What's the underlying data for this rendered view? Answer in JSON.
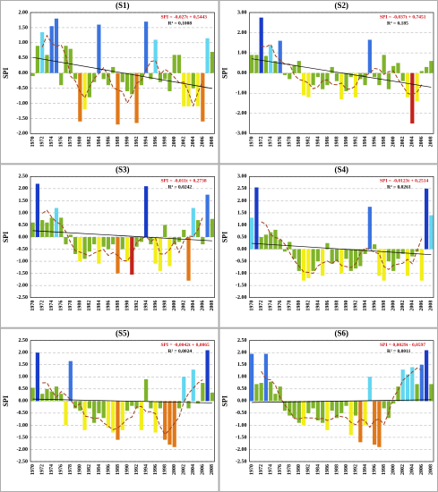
{
  "chart_data": [
    {
      "type": "bar",
      "title": "(S1)",
      "ylabel": "SPI",
      "categories": [
        "1970",
        null,
        "1972",
        null,
        "1974",
        null,
        "1976",
        null,
        "1978",
        null,
        "1980",
        null,
        "1982",
        null,
        "1984",
        null,
        "1986",
        null,
        "1988",
        null,
        "1990",
        null,
        "1992",
        null,
        "1994",
        null,
        "1996",
        null,
        "1998",
        null,
        "2000",
        null,
        "2002",
        null,
        "2004",
        null,
        "2006",
        null,
        "2008"
      ],
      "values": [
        -0.1,
        0.9,
        1.35,
        0.6,
        1.55,
        1.8,
        -0.4,
        0.9,
        0.8,
        -0.2,
        -1.6,
        -1.2,
        -0.8,
        -0.3,
        1.6,
        -0.2,
        -0.4,
        0.2,
        -1.7,
        -0.3,
        -0.6,
        -0.7,
        -1.65,
        -0.4,
        1.7,
        -0.2,
        1.1,
        -0.3,
        -0.2,
        -0.6,
        0.6,
        0.6,
        -1.1,
        -1.1,
        -0.5,
        -1.1,
        -1.6,
        1.15,
        0.7
      ],
      "colors": [
        "#7fb32a",
        "#7fb32a",
        "#62d6f0",
        "#7fb32a",
        "#3b73e0",
        "#3b73e0",
        "#7fb32a",
        "#7fb32a",
        "#7fb32a",
        "#7fb32a",
        "#e07818",
        "#f2ee1a",
        "#7fb32a",
        "#7fb32a",
        "#3b73e0",
        "#7fb32a",
        "#7fb32a",
        "#7fb32a",
        "#e07818",
        "#7fb32a",
        "#7fb32a",
        "#7fb32a",
        "#e07818",
        "#7fb32a",
        "#3b73e0",
        "#7fb32a",
        "#62d6f0",
        "#7fb32a",
        "#7fb32a",
        "#7fb32a",
        "#7fb32a",
        "#7fb32a",
        "#f2ee1a",
        "#f2ee1a",
        "#7fb32a",
        "#f2ee1a",
        "#e07818",
        "#62d6f0",
        "#7fb32a"
      ],
      "ylim": [
        -2,
        2
      ],
      "yticks": [
        {
          "value": -2,
          "label": "-2.00"
        },
        {
          "value": -1.5,
          "label": "-1.50"
        },
        {
          "value": -1,
          "label": "-1.00"
        },
        {
          "value": -0.5,
          "label": "-0.50"
        },
        {
          "value": 0,
          "label": "0.00"
        },
        {
          "value": 0.5,
          "label": "0.50"
        },
        {
          "value": 1,
          "label": "1.00"
        },
        {
          "value": 1.5,
          "label": "1.50"
        },
        {
          "value": 2,
          "label": "2.00"
        }
      ],
      "grid": true,
      "trend": {
        "label": "SPI = -0,027t + 0,5443",
        "r2_label": "R² = 0,1008",
        "slope": -0.027,
        "intercept": 0.5443
      }
    },
    {
      "type": "bar",
      "title": "(S2)",
      "ylabel": "SPI",
      "categories": [
        "1970",
        null,
        "1972",
        null,
        "1974",
        null,
        "1976",
        null,
        "1978",
        null,
        "1980",
        null,
        "1982",
        null,
        "1984",
        null,
        "1986",
        null,
        "1988",
        null,
        "1990",
        null,
        "1992",
        null,
        "1994",
        null,
        "1996",
        null,
        "1998",
        null,
        "2000",
        null,
        "2002",
        null,
        "2004",
        null,
        "2006",
        null,
        "2008"
      ],
      "values": [
        0.9,
        0.9,
        2.75,
        0.85,
        1.35,
        0.6,
        1.6,
        -0.1,
        -0.3,
        0.4,
        0.6,
        -1.1,
        -1.2,
        -0.6,
        -0.2,
        -0.8,
        -0.6,
        0.3,
        -0.4,
        -1.3,
        -0.9,
        -0.2,
        -1.2,
        -0.3,
        -0.6,
        1.65,
        -0.2,
        -0.6,
        0.9,
        -0.8,
        0.35,
        0.5,
        -0.4,
        -1.2,
        -2.5,
        -1.4,
        0.1,
        0.3,
        0.6
      ],
      "colors": [
        "#7fb32a",
        "#7fb32a",
        "#1a3cc8",
        "#7fb32a",
        "#62d6f0",
        "#7fb32a",
        "#3b73e0",
        "#7fb32a",
        "#7fb32a",
        "#7fb32a",
        "#7fb32a",
        "#f2ee1a",
        "#f2ee1a",
        "#7fb32a",
        "#7fb32a",
        "#7fb32a",
        "#7fb32a",
        "#7fb32a",
        "#7fb32a",
        "#f2ee1a",
        "#7fb32a",
        "#7fb32a",
        "#f2ee1a",
        "#7fb32a",
        "#7fb32a",
        "#3b73e0",
        "#7fb32a",
        "#7fb32a",
        "#7fb32a",
        "#7fb32a",
        "#7fb32a",
        "#7fb32a",
        "#7fb32a",
        "#f2ee1a",
        "#c4221c",
        "#f2ee1a",
        "#7fb32a",
        "#7fb32a",
        "#7fb32a"
      ],
      "ylim": [
        -3,
        3
      ],
      "yticks": [
        {
          "value": -3,
          "label": "-3.00"
        },
        {
          "value": -2,
          "label": "-2.00"
        },
        {
          "value": -1,
          "label": "-1.00"
        },
        {
          "value": 0,
          "label": "0.00"
        },
        {
          "value": 1,
          "label": "1.00"
        },
        {
          "value": 2,
          "label": "2.00"
        },
        {
          "value": 3,
          "label": "3.00"
        }
      ],
      "grid": true,
      "trend": {
        "label": "SPI = -0,037t + 0,7451",
        "r2_label": "R² = 0,185",
        "slope": -0.037,
        "intercept": 0.7451
      }
    },
    {
      "type": "bar",
      "title": "(S3)",
      "ylabel": "SPI",
      "categories": [
        "1970",
        null,
        "1972",
        null,
        "1974",
        null,
        "1976",
        null,
        "1978",
        null,
        "1980",
        null,
        "1982",
        null,
        "1984",
        null,
        "1986",
        null,
        "1988",
        null,
        "1990",
        null,
        "1992",
        null,
        "1994",
        null,
        "1996",
        null,
        "1998",
        null,
        "2000",
        null,
        "2002",
        null,
        "2004",
        null,
        "2006",
        null,
        "2008"
      ],
      "values": [
        0.6,
        2.2,
        0.7,
        0.6,
        0.8,
        1.2,
        0.8,
        -0.3,
        0.1,
        -0.7,
        -1.0,
        -0.9,
        -0.6,
        -0.3,
        -1.1,
        -0.4,
        -0.5,
        -0.3,
        -1.5,
        -0.5,
        -1.0,
        -1.55,
        -0.4,
        -0.2,
        2.1,
        -0.3,
        -1.1,
        -1.4,
        0.5,
        -1.2,
        -0.3,
        -0.2,
        0.3,
        -1.8,
        1.2,
        0.7,
        -0.3,
        1.75,
        0.75
      ],
      "colors": [
        "#7fb32a",
        "#1a3cc8",
        "#7fb32a",
        "#7fb32a",
        "#7fb32a",
        "#62d6f0",
        "#7fb32a",
        "#7fb32a",
        "#7fb32a",
        "#7fb32a",
        "#f2ee1a",
        "#7fb32a",
        "#7fb32a",
        "#7fb32a",
        "#f2ee1a",
        "#7fb32a",
        "#7fb32a",
        "#7fb32a",
        "#e07818",
        "#7fb32a",
        "#f2ee1a",
        "#c4221c",
        "#7fb32a",
        "#7fb32a",
        "#1a3cc8",
        "#7fb32a",
        "#f2ee1a",
        "#f2ee1a",
        "#7fb32a",
        "#f2ee1a",
        "#7fb32a",
        "#7fb32a",
        "#7fb32a",
        "#e07818",
        "#62d6f0",
        "#7fb32a",
        "#7fb32a",
        "#3b73e0",
        "#7fb32a"
      ],
      "ylim": [
        -2.5,
        2.5
      ],
      "yticks": [
        {
          "value": -2.5,
          "label": "-2.50"
        },
        {
          "value": -2,
          "label": "-2.00"
        },
        {
          "value": -1.5,
          "label": "-1.50"
        },
        {
          "value": -1,
          "label": "-1.00"
        },
        {
          "value": -0.5,
          "label": "-0.50"
        },
        {
          "value": 0,
          "label": "0.00"
        },
        {
          "value": 0.5,
          "label": "0.50"
        },
        {
          "value": 1,
          "label": "1.00"
        },
        {
          "value": 1.5,
          "label": "1.50"
        },
        {
          "value": 2,
          "label": "2.00"
        },
        {
          "value": 2.5,
          "label": "2.50"
        }
      ],
      "grid": true,
      "trend": {
        "label": "SPI = -0,011t + 0,2738",
        "r2_label": "R² = 0,0242",
        "slope": -0.011,
        "intercept": 0.2738
      }
    },
    {
      "type": "bar",
      "title": "(S4)",
      "ylabel": "SPI",
      "categories": [
        "1970",
        null,
        "1972",
        null,
        "1974",
        null,
        "1976",
        null,
        "1978",
        null,
        "1980",
        null,
        "1982",
        null,
        "1984",
        null,
        "1986",
        null,
        "1988",
        null,
        "1990",
        null,
        "1992",
        null,
        "1994",
        null,
        "1996",
        null,
        "1998",
        null,
        "2000",
        null,
        "2002",
        null,
        "2004",
        null,
        "2006",
        null,
        "2008"
      ],
      "values": [
        1.3,
        2.55,
        0.5,
        0.6,
        0.7,
        0.8,
        0.4,
        -0.1,
        0.3,
        -0.4,
        -0.9,
        -1.3,
        -1.2,
        -0.9,
        -0.5,
        -1.1,
        0.25,
        -0.6,
        -0.5,
        -1.0,
        -0.4,
        -0.9,
        -0.8,
        -0.7,
        -0.2,
        1.75,
        0.2,
        -1.1,
        -1.3,
        -0.5,
        -0.9,
        -0.4,
        -0.2,
        -1.1,
        -0.3,
        -0.1,
        -1.3,
        2.5,
        1.4
      ],
      "colors": [
        "#62d6f0",
        "#1a3cc8",
        "#7fb32a",
        "#7fb32a",
        "#7fb32a",
        "#7fb32a",
        "#7fb32a",
        "#7fb32a",
        "#7fb32a",
        "#7fb32a",
        "#7fb32a",
        "#f2ee1a",
        "#f2ee1a",
        "#7fb32a",
        "#7fb32a",
        "#f2ee1a",
        "#7fb32a",
        "#7fb32a",
        "#7fb32a",
        "#f2ee1a",
        "#7fb32a",
        "#7fb32a",
        "#7fb32a",
        "#7fb32a",
        "#7fb32a",
        "#3b73e0",
        "#7fb32a",
        "#f2ee1a",
        "#f2ee1a",
        "#7fb32a",
        "#7fb32a",
        "#7fb32a",
        "#7fb32a",
        "#f2ee1a",
        "#7fb32a",
        "#7fb32a",
        "#f2ee1a",
        "#1a3cc8",
        "#62d6f0"
      ],
      "ylim": [
        -2,
        3
      ],
      "yticks": [
        {
          "value": -2,
          "label": "-2.00"
        },
        {
          "value": -1.5,
          "label": "-1.50"
        },
        {
          "value": -1,
          "label": "-1.00"
        },
        {
          "value": -0.5,
          "label": "-0.50"
        },
        {
          "value": 0,
          "label": "0.00"
        },
        {
          "value": 0.5,
          "label": "0.50"
        },
        {
          "value": 1,
          "label": "1.00"
        },
        {
          "value": 1.5,
          "label": "1.50"
        },
        {
          "value": 2,
          "label": "2.00"
        },
        {
          "value": 2.5,
          "label": "2.50"
        },
        {
          "value": 3,
          "label": "3.00"
        }
      ],
      "grid": true,
      "trend": {
        "label": "SPI = -0,0123t + 0,2514",
        "r2_label": "R² = 0,0261",
        "slope": -0.0123,
        "intercept": 0.2514
      }
    },
    {
      "type": "bar",
      "title": "(S5)",
      "ylabel": "SPI",
      "categories": [
        "1970",
        null,
        "1972",
        null,
        "1974",
        null,
        "1976",
        null,
        "1978",
        null,
        "1980",
        null,
        "1982",
        null,
        "1984",
        null,
        "1986",
        null,
        "1988",
        null,
        "1990",
        null,
        "1992",
        null,
        "1994",
        null,
        "1996",
        null,
        "1998",
        null,
        "2000",
        null,
        "2002",
        null,
        "2004",
        null,
        "2006",
        null,
        "2008"
      ],
      "values": [
        0.55,
        2.0,
        0.3,
        0.5,
        0.4,
        0.6,
        0.3,
        -1.0,
        1.65,
        -0.3,
        -0.4,
        -1.2,
        -0.3,
        -0.9,
        -0.5,
        -0.7,
        -1.1,
        -1.3,
        -1.6,
        -1.2,
        -0.4,
        -0.2,
        -0.3,
        -1.2,
        0.9,
        -0.3,
        -1.3,
        -0.3,
        -1.6,
        -1.8,
        -1.9,
        -0.3,
        1.0,
        -0.3,
        1.3,
        -0.1,
        0.75,
        2.1,
        0.35
      ],
      "colors": [
        "#7fb32a",
        "#1a3cc8",
        "#7fb32a",
        "#7fb32a",
        "#7fb32a",
        "#7fb32a",
        "#7fb32a",
        "#f2ee1a",
        "#3b73e0",
        "#7fb32a",
        "#7fb32a",
        "#f2ee1a",
        "#7fb32a",
        "#7fb32a",
        "#7fb32a",
        "#7fb32a",
        "#f2ee1a",
        "#f2ee1a",
        "#e07818",
        "#f2ee1a",
        "#7fb32a",
        "#7fb32a",
        "#7fb32a",
        "#f2ee1a",
        "#7fb32a",
        "#7fb32a",
        "#f2ee1a",
        "#7fb32a",
        "#e07818",
        "#e07818",
        "#e07818",
        "#7fb32a",
        "#62d6f0",
        "#7fb32a",
        "#62d6f0",
        "#7fb32a",
        "#7fb32a",
        "#1a3cc8",
        "#7fb32a"
      ],
      "ylim": [
        -2.5,
        2.5
      ],
      "yticks": [
        {
          "value": -2.5,
          "label": "-2.50"
        },
        {
          "value": -2,
          "label": "-2.00"
        },
        {
          "value": -1.5,
          "label": "-1.50"
        },
        {
          "value": -1,
          "label": "-1.00"
        },
        {
          "value": -0.5,
          "label": "-0.50"
        },
        {
          "value": 0,
          "label": "0.00"
        },
        {
          "value": 0.5,
          "label": "0.50"
        },
        {
          "value": 1,
          "label": "1.00"
        },
        {
          "value": 1.5,
          "label": "1.50"
        },
        {
          "value": 2,
          "label": "2.00"
        },
        {
          "value": 2.5,
          "label": "2.50"
        }
      ],
      "grid": true,
      "trend": {
        "label": "SPI = -0,0042t + 0,0865",
        "r2_label": "R² = 0,0024",
        "slope": -0.0042,
        "intercept": 0.0865
      }
    },
    {
      "type": "bar",
      "title": "(S6)",
      "ylabel": "SPI",
      "categories": [
        "1970",
        null,
        "1972",
        null,
        "1974",
        null,
        "1976",
        null,
        "1978",
        null,
        "1980",
        null,
        "1982",
        null,
        "1984",
        null,
        "1986",
        null,
        "1988",
        null,
        "1990",
        null,
        "1992",
        null,
        "1994",
        null,
        "1996",
        null,
        "1998",
        null,
        "2000",
        null,
        "2002",
        null,
        "2004",
        null,
        "2006",
        null,
        "2008"
      ],
      "values": [
        1.95,
        0.7,
        0.75,
        1.95,
        0.8,
        0.3,
        0.6,
        -0.4,
        -0.6,
        -0.7,
        -0.9,
        -1.0,
        -0.5,
        -0.3,
        -0.8,
        -0.9,
        -1.2,
        -0.4,
        -0.7,
        -0.5,
        -0.2,
        -1.4,
        -0.6,
        -1.7,
        -1.0,
        1.0,
        -1.8,
        -1.9,
        -0.3,
        -0.7,
        -0.1,
        0.6,
        1.3,
        1.1,
        1.4,
        0.7,
        1.5,
        2.1,
        0.7
      ],
      "colors": [
        "#3b73e0",
        "#7fb32a",
        "#7fb32a",
        "#3b73e0",
        "#7fb32a",
        "#7fb32a",
        "#7fb32a",
        "#7fb32a",
        "#7fb32a",
        "#7fb32a",
        "#7fb32a",
        "#f2ee1a",
        "#7fb32a",
        "#7fb32a",
        "#7fb32a",
        "#7fb32a",
        "#f2ee1a",
        "#7fb32a",
        "#7fb32a",
        "#7fb32a",
        "#7fb32a",
        "#f2ee1a",
        "#7fb32a",
        "#e07818",
        "#f2ee1a",
        "#62d6f0",
        "#e07818",
        "#e07818",
        "#7fb32a",
        "#7fb32a",
        "#7fb32a",
        "#7fb32a",
        "#62d6f0",
        "#62d6f0",
        "#62d6f0",
        "#7fb32a",
        "#3b73e0",
        "#1a3cc8",
        "#7fb32a"
      ],
      "ylim": [
        -2.5,
        2.5
      ],
      "yticks": [
        {
          "value": -2.5,
          "label": "-2.50"
        },
        {
          "value": -2,
          "label": "-2.00"
        },
        {
          "value": -1.5,
          "label": "-1.50"
        },
        {
          "value": -1,
          "label": "-1.00"
        },
        {
          "value": -0.5,
          "label": "-0.50"
        },
        {
          "value": 0,
          "label": "0.00"
        },
        {
          "value": 0.5,
          "label": "0.50"
        },
        {
          "value": 1,
          "label": "1.00"
        },
        {
          "value": 1.5,
          "label": "1.50"
        },
        {
          "value": 2,
          "label": "2.00"
        },
        {
          "value": 2.5,
          "label": "2.50"
        }
      ],
      "grid": true,
      "trend": {
        "label": "SPI = 0,0029t - 0,0597",
        "r2_label": "R² = 0,0011",
        "slope": 0.0029,
        "intercept": -0.0597
      }
    }
  ]
}
